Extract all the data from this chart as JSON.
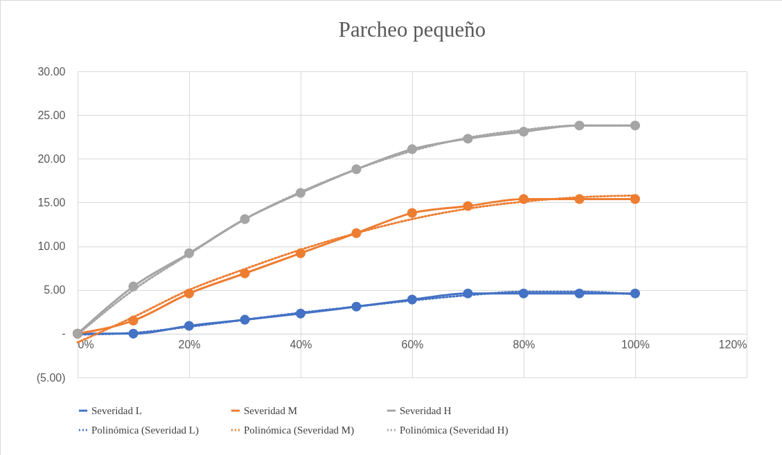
{
  "chart_data": {
    "type": "line",
    "title": "Parcheo pequeño",
    "x": [
      0,
      10,
      20,
      30,
      40,
      50,
      60,
      70,
      80,
      90,
      100
    ],
    "xlim": [
      0,
      120
    ],
    "xticks": [
      {
        "value": 0,
        "label": "0%"
      },
      {
        "value": 20,
        "label": "20%"
      },
      {
        "value": 40,
        "label": "40%"
      },
      {
        "value": 60,
        "label": "60%"
      },
      {
        "value": 80,
        "label": "80%"
      },
      {
        "value": 100,
        "label": "100%"
      },
      {
        "value": 120,
        "label": "120%"
      }
    ],
    "ylim": [
      -5,
      30
    ],
    "yticks": [
      {
        "value": -5,
        "label": "(5.00)"
      },
      {
        "value": 0,
        "label": "-"
      },
      {
        "value": 5,
        "label": "5.00"
      },
      {
        "value": 10,
        "label": "10.00"
      },
      {
        "value": 15,
        "label": "15.00"
      },
      {
        "value": 20,
        "label": "20.00"
      },
      {
        "value": 25,
        "label": "25.00"
      },
      {
        "value": 30,
        "label": "30.00"
      }
    ],
    "grid": true,
    "legend": "bottom",
    "series": [
      {
        "name": "Severidad L",
        "color": "#4472c4",
        "marker": "circle",
        "line_style": "solid",
        "values": [
          0,
          0,
          0.9,
          1.6,
          2.3,
          3.1,
          3.9,
          4.6,
          4.6,
          4.6,
          4.6
        ]
      },
      {
        "name": "Severidad M",
        "color": "#ed7d31",
        "marker": "circle",
        "line_style": "solid",
        "values": [
          0,
          1.5,
          4.6,
          6.9,
          9.2,
          11.5,
          13.8,
          14.6,
          15.4,
          15.4,
          15.4
        ]
      },
      {
        "name": "Severidad H",
        "color": "#a5a5a5",
        "marker": "circle",
        "line_style": "solid",
        "values": [
          0,
          5.4,
          9.2,
          13.1,
          16.1,
          18.8,
          21.1,
          22.3,
          23.1,
          23.8,
          23.8
        ]
      },
      {
        "name": "Polinómica (Severidad L)",
        "color": "#4472c4",
        "marker": "none",
        "line_style": "dotted",
        "values": [
          -0.1,
          0.1,
          0.8,
          1.6,
          2.4,
          3.1,
          3.8,
          4.4,
          4.8,
          4.8,
          4.5
        ]
      },
      {
        "name": "Polinómica (Severidad M)",
        "color": "#ed7d31",
        "marker": "none",
        "line_style": "dotted",
        "values": [
          -1.0,
          1.9,
          5.0,
          7.4,
          9.6,
          11.5,
          13.1,
          14.3,
          15.1,
          15.6,
          15.8
        ]
      },
      {
        "name": "Polinómica (Severidad H)",
        "color": "#a5a5a5",
        "marker": "none",
        "line_style": "dotted",
        "values": [
          -0.1,
          5.0,
          9.1,
          13.1,
          16.2,
          18.8,
          20.9,
          22.4,
          23.3,
          23.8,
          23.8
        ]
      }
    ]
  }
}
